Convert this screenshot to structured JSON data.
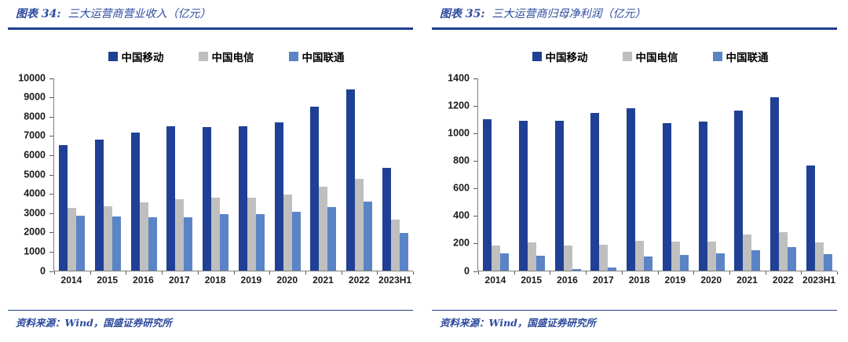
{
  "colors": {
    "title_blue": "#2c4a9e",
    "rule_blue": "#1f3d8f",
    "axis": "#808080",
    "tick": "#595959",
    "label": "#1a1a1a",
    "mobile": "#1f4095",
    "telecom": "#bfbfbf",
    "unicom": "#5b84c6"
  },
  "panels": [
    {
      "figure_label": "图表 34:",
      "source_prefix": "资料来源：",
      "source_body": "Wind，国盛证券研究所",
      "chart_data": {
        "type": "bar",
        "title": "三大运营商营业收入（亿元）",
        "xlabel": "",
        "ylabel": "",
        "categories": [
          "2014",
          "2015",
          "2016",
          "2017",
          "2018",
          "2019",
          "2020",
          "2021",
          "2022",
          "2023H1"
        ],
        "series": [
          {
            "name": "中国移动",
            "color_key": "mobile",
            "values": [
              6480,
              6750,
              7130,
              7450,
              7410,
              7460,
              7680,
              8483,
              9373,
              5307
            ]
          },
          {
            "name": "中国电信",
            "color_key": "telecom",
            "values": [
              3244,
              3312,
              3523,
              3662,
              3771,
              3757,
              3936,
              4342,
              4750,
              2607
            ]
          },
          {
            "name": "中国联通",
            "color_key": "unicom",
            "values": [
              2846,
              2771,
              2742,
              2748,
              2909,
              2905,
              3038,
              3279,
              3549,
              1918
            ]
          }
        ],
        "ylim": [
          0,
          10000
        ],
        "ytick_step": 1000,
        "legend_position": "top",
        "grid": false
      }
    },
    {
      "figure_label": "图表 35:",
      "source_prefix": "资料来源：",
      "source_body": "Wind，国盛证券研究所",
      "chart_data": {
        "type": "bar",
        "title": "三大运营商归母净利润（亿元）",
        "xlabel": "",
        "ylabel": "",
        "categories": [
          "2014",
          "2015",
          "2016",
          "2017",
          "2018",
          "2019",
          "2020",
          "2021",
          "2022",
          "2023H1"
        ],
        "series": [
          {
            "name": "中国移动",
            "color_key": "mobile",
            "values": [
              1093,
              1085,
              1087,
              1143,
              1178,
              1066,
              1078,
              1161,
              1255,
              762
            ]
          },
          {
            "name": "中国电信",
            "color_key": "telecom",
            "values": [
              177,
              200,
              180,
              186,
              212,
              205,
              209,
              259,
              276,
              202
            ]
          },
          {
            "name": "中国联通",
            "color_key": "unicom",
            "values": [
              121,
              105,
              6,
              18,
              102,
              113,
              125,
              144,
              167,
              118
            ]
          }
        ],
        "ylim": [
          0,
          1400
        ],
        "ytick_step": 200,
        "legend_position": "top",
        "grid": false
      }
    }
  ]
}
